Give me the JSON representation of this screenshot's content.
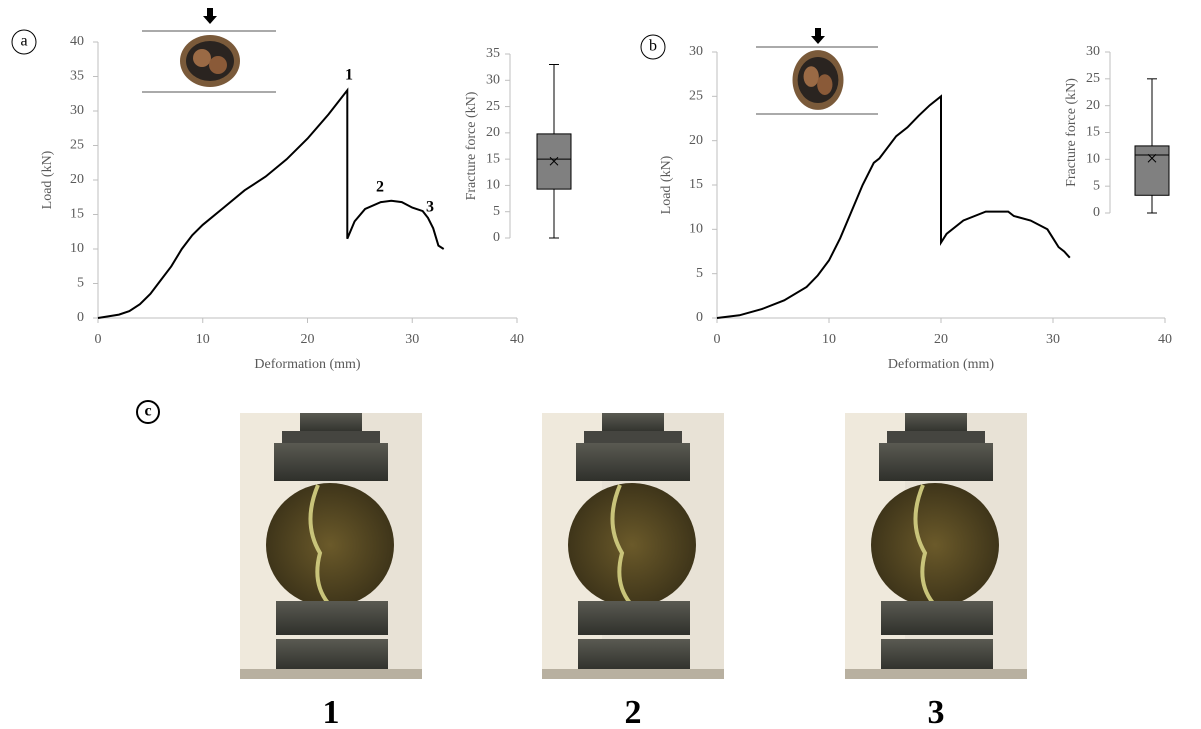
{
  "chart_data": [
    {
      "type": "line",
      "xlabel": "Deformation (mm)",
      "ylabel": "Load (kN)",
      "color": "#000000",
      "x": [
        0,
        2,
        3,
        4,
        5,
        6,
        7,
        8,
        9,
        10,
        12,
        14,
        16,
        18,
        20,
        22,
        23.8,
        23.8,
        24.5,
        25.5,
        27,
        28,
        29,
        30,
        31,
        31.5,
        32,
        32.5,
        33
      ],
      "y": [
        0,
        0.5,
        1,
        2,
        3.5,
        5.5,
        7.5,
        10,
        12,
        13.5,
        16,
        18.5,
        20.5,
        23,
        26,
        29.5,
        33,
        11.5,
        14,
        15.8,
        16.8,
        17,
        16.8,
        16,
        15.5,
        14.5,
        13,
        10.5,
        10
      ],
      "xlim": [
        0,
        40
      ],
      "xticks": [
        0,
        10,
        20,
        30,
        40
      ],
      "ylim": [
        0,
        40
      ],
      "yticks": [
        0,
        5,
        10,
        15,
        20,
        25,
        30,
        35,
        40
      ],
      "annotations": [
        "1",
        "2",
        "3"
      ]
    },
    {
      "type": "box",
      "ylabel": "Fracture force (kN)",
      "color": "#808080",
      "stats": {
        "min": 0,
        "q1": 9.3,
        "median": 15,
        "q3": 19.8,
        "max": 33,
        "mean": 14.6
      },
      "ylim": [
        0,
        35
      ],
      "yticks": [
        0,
        5,
        10,
        15,
        20,
        25,
        30,
        35
      ]
    },
    {
      "type": "line",
      "xlabel": "Deformation (mm)",
      "ylabel": "Load (kN)",
      "color": "#000000",
      "x": [
        0,
        2,
        4,
        6,
        8,
        9,
        10,
        11,
        12,
        13,
        14,
        14.5,
        16,
        17,
        18,
        19,
        20,
        20,
        20.5,
        22,
        24,
        26,
        26.5,
        28,
        29.5,
        30,
        30.5,
        31,
        31.5
      ],
      "y": [
        0,
        0.3,
        1,
        2,
        3.5,
        4.8,
        6.5,
        9,
        12,
        15,
        17.5,
        18,
        20.5,
        21.5,
        22.8,
        24,
        25,
        8.5,
        9.5,
        11,
        12,
        12,
        11.5,
        11,
        10,
        9,
        8,
        7.5,
        6.8
      ],
      "xlim": [
        0,
        40
      ],
      "xticks": [
        0,
        10,
        20,
        30,
        40
      ],
      "ylim": [
        0,
        30
      ],
      "yticks": [
        0,
        5,
        10,
        15,
        20,
        25,
        30
      ]
    },
    {
      "type": "box",
      "ylabel": "Fracture force (kN)",
      "color": "#808080",
      "stats": {
        "min": 0,
        "q1": 3.3,
        "median": 10.8,
        "q3": 12.5,
        "max": 25,
        "mean": 10.2
      },
      "ylim": [
        0,
        30
      ],
      "yticks": [
        0,
        5,
        10,
        15,
        20,
        25,
        30
      ]
    }
  ],
  "panel_labels": [
    "a",
    "b",
    "c"
  ],
  "photo_labels": [
    "1",
    "2",
    "3"
  ]
}
